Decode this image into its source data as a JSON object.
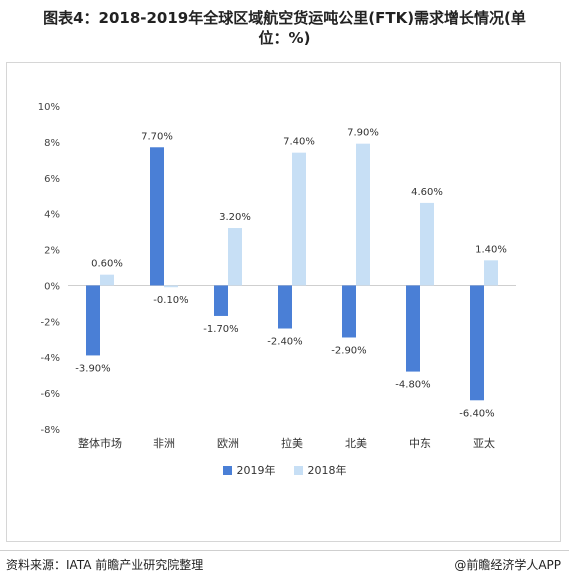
{
  "title_line1": "图表4：2018-2019年全球区域航空货运吨公里(FTK)需求增长情况(单",
  "title_line2": "位：%)",
  "source_left": "资料来源：IATA  前瞻产业研究院整理",
  "source_right": "@前瞻经济学人APP",
  "colors": {
    "y2019": "#4a7fd6",
    "y2018": "#c7dff5"
  },
  "chart_data": {
    "type": "bar",
    "categories": [
      "整体市场",
      "非洲",
      "欧洲",
      "拉美",
      "北美",
      "中东",
      "亚太"
    ],
    "series": [
      {
        "name": "2019年",
        "values": [
          -3.9,
          7.7,
          -1.7,
          -2.4,
          -2.9,
          -4.8,
          -6.4
        ],
        "labels": [
          "-3.90%",
          "7.70%",
          "-1.70%",
          "-2.40%",
          "-2.90%",
          "-4.80%",
          "-6.40%"
        ]
      },
      {
        "name": "2018年",
        "values": [
          0.6,
          -0.1,
          3.2,
          7.4,
          7.9,
          4.6,
          1.4
        ],
        "labels": [
          "0.60%",
          "-0.10%",
          "3.20%",
          "7.40%",
          "7.90%",
          "4.60%",
          "1.40%"
        ]
      }
    ],
    "yticks": [
      "10%",
      "8%",
      "6%",
      "4%",
      "2%",
      "0%",
      "-2%",
      "-4%",
      "-6%",
      "-8%"
    ],
    "ylim": [
      -8,
      10
    ],
    "legend_position": "bottom"
  }
}
